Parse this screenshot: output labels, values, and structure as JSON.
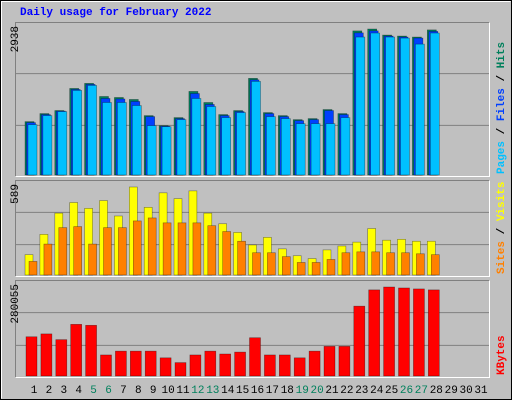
{
  "chart_data": {
    "type": "bar",
    "title": "Daily usage for February 2022",
    "categories": [
      "1",
      "2",
      "3",
      "4",
      "5",
      "6",
      "7",
      "8",
      "9",
      "10",
      "11",
      "12",
      "13",
      "14",
      "15",
      "16",
      "17",
      "18",
      "19",
      "20",
      "21",
      "22",
      "23",
      "24",
      "25",
      "26",
      "27",
      "28",
      "29",
      "30",
      "31"
    ],
    "category_colors": [
      "#000000",
      "#000000",
      "#000000",
      "#000000",
      "#00805c",
      "#00805c",
      "#000000",
      "#000000",
      "#000000",
      "#000000",
      "#000000",
      "#00805c",
      "#00805c",
      "#000000",
      "#000000",
      "#000000",
      "#000000",
      "#000000",
      "#00805c",
      "#00805c",
      "#000000",
      "#000000",
      "#000000",
      "#000000",
      "#000000",
      "#00805c",
      "#00805c",
      "#000000",
      "#000000",
      "#000000",
      "#000000"
    ],
    "legend_separator": " / ",
    "panels": [
      {
        "ylim": [
          0,
          2938
        ],
        "yticks": [
          2938
        ],
        "series": [
          {
            "name": "Hits",
            "color": "#00805c",
            "values": [
              1074,
              1236,
              1297,
              1742,
              1844,
              1580,
              1560,
              1520,
              1195,
              993,
              1155,
              1682,
              1459,
              1216,
              1297,
              1945,
              1256,
              1195,
              1114,
              1135,
              1317,
              1236,
              2900,
              2938,
              2816,
              2796,
              2776,
              2920,
              null,
              null,
              null
            ]
          },
          {
            "name": "Files",
            "color": "#0040ff",
            "values": [
              1054,
              1216,
              1287,
              1722,
              1824,
              1540,
              1530,
              1480,
              1175,
              983,
              1135,
              1640,
              1420,
              1196,
              1277,
              1915,
              1236,
              1175,
              1094,
              1115,
              1297,
              1216,
              2860,
              2900,
              2796,
              2776,
              2756,
              2890,
              null,
              null,
              null
            ]
          },
          {
            "name": "Pages",
            "color": "#00c0ff",
            "values": [
              1013,
              1195,
              1276,
              1702,
              1803,
              1459,
              1459,
              1398,
              993,
              972,
              1114,
              1540,
              1378,
              1155,
              1256,
              1884,
              1175,
              1135,
              1033,
              1033,
              1033,
              1155,
              2776,
              2857,
              2776,
              2755,
              2634,
              2857,
              null,
              null,
              null
            ]
          }
        ]
      },
      {
        "ylim": [
          0,
          589
        ],
        "yticks": [
          589
        ],
        "series": [
          {
            "name": "Visits",
            "color": "#ffff00",
            "values": [
              136,
              272,
              414,
              485,
              446,
              498,
              395,
              589,
              453,
              550,
              511,
              563,
              414,
              343,
              285,
              201,
              252,
              175,
              129,
              110,
              168,
              194,
              220,
              311,
              233,
              239,
              226,
              226,
              null,
              null,
              null
            ]
          },
          {
            "name": "Sites",
            "color": "#ff8000",
            "values": [
              91,
              207,
              317,
              324,
              207,
              317,
              317,
              362,
              382,
              349,
              349,
              349,
              330,
              291,
              226,
              149,
              149,
              123,
              84,
              84,
              104,
              149,
              155,
              155,
              149,
              149,
              142,
              136,
              null,
              null,
              null
            ]
          }
        ]
      },
      {
        "ylim": [
          0,
          280055
        ],
        "yticks": [
          280055
        ],
        "series": [
          {
            "name": "KBytes",
            "color": "#ff0000",
            "values": [
              123451,
              132484,
              114418,
              162594,
              159583,
              66242,
              78286,
              78286,
              78286,
              57209,
              42154,
              66242,
              78286,
              69253,
              75275,
              120440,
              66242,
              66242,
              57209,
              78286,
              93341,
              93341,
              219803,
              270990,
              280055,
              277011,
              274001,
              270990,
              null,
              null,
              null
            ]
          }
        ]
      }
    ]
  }
}
